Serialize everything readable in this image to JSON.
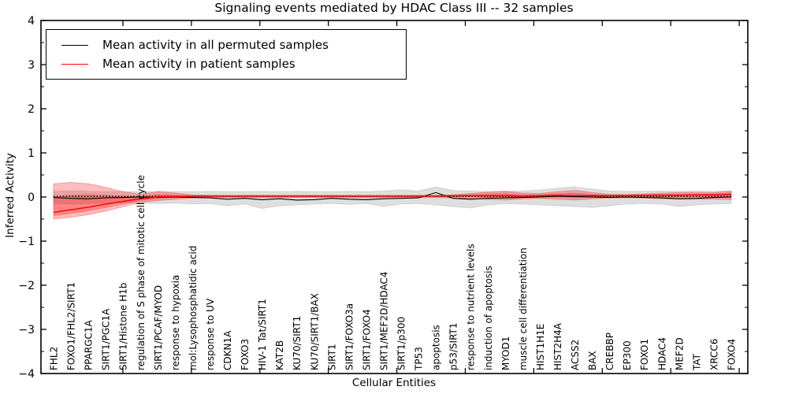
{
  "legend": {
    "entries": [
      {
        "label": "Mean activity in all permuted samples",
        "color": "#000000"
      },
      {
        "label": "Mean activity in patient samples",
        "color": "#ff0000"
      }
    ]
  },
  "chart_data": {
    "type": "line",
    "title": "Signaling events mediated by HDAC Class III -- 32 samples",
    "xlabel": "Cellular Entities",
    "ylabel": "Inferred Activity",
    "ylim": [
      -4,
      4
    ],
    "y_ticks": [
      4,
      3,
      2,
      1,
      0,
      -1,
      -2,
      -3,
      -4
    ],
    "grid": false,
    "legend_position": "upper left",
    "categories": [
      "FHL2",
      "FOXO1/FHL2/SIRT1",
      "PPARGC1A",
      "SIRT1/PGC1A",
      "SIRT1/Histone H1b",
      "regulation of S phase of mitotic cell cycle",
      "SIRT1/PCAF/MYOD",
      "response to hypoxia",
      "mol:Lysophosphatidic acid",
      "response to UV",
      "CDKN1A",
      "FOXO3",
      "HIV-1 Tat/SIRT1",
      "KAT2B",
      "KU70/SIRT1",
      "KU70/SIRT1/BAX",
      "SIRT1",
      "SIRT1/FOXO3a",
      "SIRT1/FOXO4",
      "SIRT1/MEF2D/HDAC4",
      "SIRT1/p300",
      "TP53",
      "apoptosis",
      "p53/SIRT1",
      "response to nutrient levels",
      "induction of apoptosis",
      "MYOD1",
      "muscle cell differentiation",
      "HIST1H1E",
      "HIST2H4A",
      "ACSS2",
      "BAX",
      "CREBBP",
      "EP300",
      "FOXO1",
      "HDAC4",
      "MEF2D",
      "TAT",
      "XRCC6",
      "FOXO4"
    ],
    "series": [
      {
        "name": "Mean activity in all permuted samples",
        "color": "#000000",
        "values": [
          -0.01,
          -0.03,
          -0.04,
          -0.02,
          -0.01,
          0.0,
          -0.01,
          0.0,
          -0.01,
          -0.02,
          -0.05,
          -0.03,
          -0.06,
          -0.04,
          -0.07,
          -0.06,
          -0.03,
          -0.05,
          -0.06,
          -0.04,
          -0.03,
          -0.02,
          0.1,
          -0.03,
          -0.05,
          -0.03,
          -0.02,
          -0.01,
          0.0,
          0.02,
          0.01,
          0.0,
          -0.01,
          0.0,
          -0.01,
          -0.02,
          -0.04,
          -0.03,
          -0.01,
          0.0
        ]
      },
      {
        "name": "Mean activity in patient samples",
        "color": "#ff0000",
        "values": [
          -0.35,
          -0.29,
          -0.23,
          -0.16,
          -0.1,
          -0.04,
          0.0,
          0.01,
          0.02,
          0.02,
          0.02,
          0.02,
          0.02,
          0.02,
          0.02,
          0.02,
          0.02,
          0.02,
          0.02,
          0.02,
          0.02,
          0.02,
          0.02,
          0.03,
          0.03,
          0.03,
          0.03,
          0.02,
          0.03,
          0.04,
          0.03,
          0.03,
          0.03,
          0.03,
          0.04,
          0.04,
          0.04,
          0.05,
          0.05,
          0.06
        ]
      }
    ],
    "bands": [
      {
        "name": "permuted-samples-range",
        "color": "#c8c8c8",
        "upper": [
          0.13,
          0.14,
          0.13,
          0.12,
          0.12,
          0.12,
          0.13,
          0.12,
          0.12,
          0.13,
          0.12,
          0.12,
          0.13,
          0.12,
          0.13,
          0.12,
          0.12,
          0.13,
          0.12,
          0.14,
          0.16,
          0.14,
          0.23,
          0.15,
          0.14,
          0.12,
          0.13,
          0.14,
          0.16,
          0.2,
          0.23,
          0.18,
          0.14,
          0.13,
          0.13,
          0.14,
          0.13,
          0.14,
          0.13,
          0.14
        ],
        "lower": [
          -0.15,
          -0.16,
          -0.15,
          -0.14,
          -0.13,
          -0.14,
          -0.15,
          -0.14,
          -0.16,
          -0.15,
          -0.2,
          -0.16,
          -0.26,
          -0.2,
          -0.18,
          -0.16,
          -0.15,
          -0.17,
          -0.15,
          -0.22,
          -0.16,
          -0.15,
          -0.18,
          -0.22,
          -0.25,
          -0.18,
          -0.15,
          -0.16,
          -0.18,
          -0.2,
          -0.22,
          -0.24,
          -0.2,
          -0.16,
          -0.15,
          -0.16,
          -0.22,
          -0.18,
          -0.16,
          -0.15
        ]
      },
      {
        "name": "patient-samples-range",
        "color": "#ff0000",
        "upper": [
          0.3,
          0.33,
          0.3,
          0.22,
          0.12,
          0.06,
          0.12,
          0.09,
          0.05,
          0.04,
          0.04,
          0.04,
          0.04,
          0.04,
          0.04,
          0.04,
          0.04,
          0.04,
          0.04,
          0.04,
          0.04,
          0.04,
          0.04,
          0.05,
          0.08,
          0.11,
          0.13,
          0.09,
          0.08,
          0.12,
          0.15,
          0.1,
          0.06,
          0.06,
          0.07,
          0.09,
          0.1,
          0.1,
          0.1,
          0.13
        ],
        "lower": [
          -0.5,
          -0.46,
          -0.4,
          -0.32,
          -0.22,
          -0.12,
          -0.08,
          -0.05,
          -0.02,
          -0.01,
          -0.01,
          -0.01,
          -0.01,
          -0.01,
          -0.01,
          -0.01,
          -0.01,
          -0.01,
          -0.01,
          -0.01,
          -0.01,
          -0.01,
          -0.01,
          -0.02,
          -0.03,
          -0.05,
          -0.07,
          -0.04,
          -0.03,
          -0.05,
          -0.07,
          -0.04,
          -0.02,
          -0.02,
          -0.02,
          -0.04,
          -0.05,
          -0.05,
          -0.05,
          -0.06
        ]
      }
    ],
    "baseline_dotted": 0.015
  }
}
